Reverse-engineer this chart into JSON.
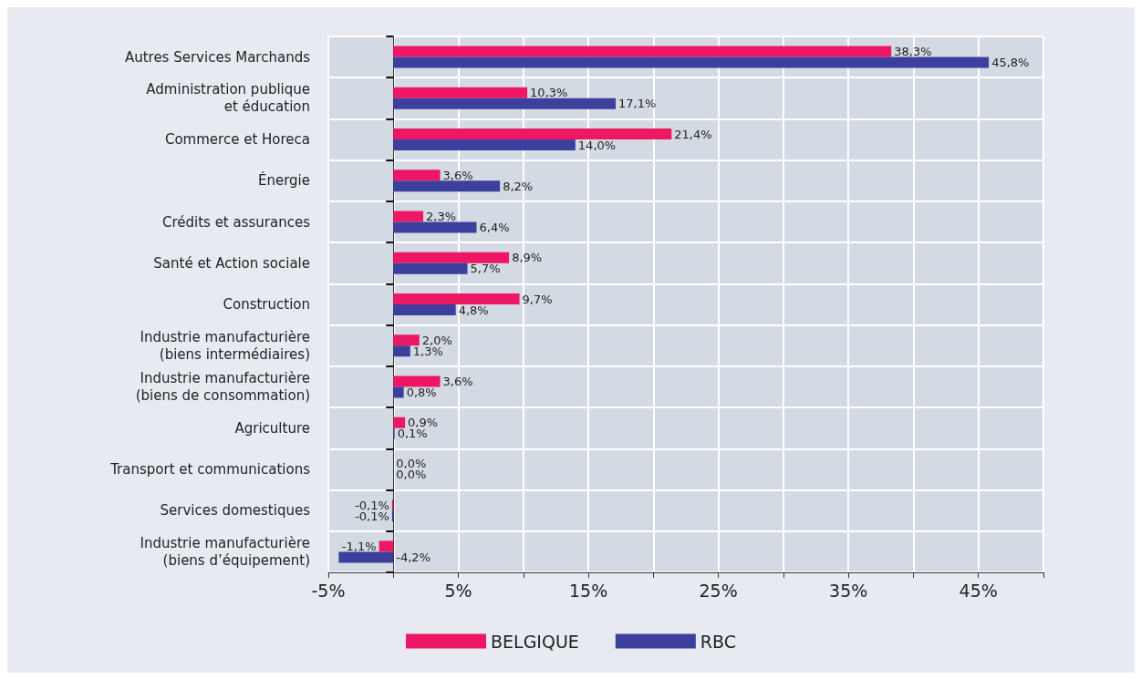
{
  "chart_data": {
    "type": "bar",
    "orientation": "horizontal",
    "categories": [
      "Autres Services Marchands",
      "Administration publique\net éducation",
      "Commerce et Horeca",
      "Énergie",
      "Crédits et assurances",
      "Santé et Action sociale",
      "Construction",
      "Industrie manufacturière\n(biens intermédiaires)",
      "Industrie manufacturière\n(biens de consommation)",
      "Agriculture",
      "Transport et communications",
      "Services domestiques",
      "Industrie manufacturière\n(biens d’équipement)"
    ],
    "series": [
      {
        "name": "BELGIQUE",
        "color": "#ee1763",
        "values": [
          38.3,
          10.3,
          21.4,
          3.6,
          2.3,
          8.9,
          9.7,
          2.0,
          3.6,
          0.9,
          0.0,
          -0.1,
          -1.1
        ],
        "value_labels": [
          "38,3%",
          "10,3%",
          "21,4%",
          "3,6%",
          "2,3%",
          "8,9%",
          "9,7%",
          "2,0%",
          "3,6%",
          "0,9%",
          "0,0%",
          "-0,1%",
          "-1,1%"
        ]
      },
      {
        "name": "RBC",
        "color": "#3c3f9c",
        "values": [
          45.8,
          17.1,
          14.0,
          8.2,
          6.4,
          5.7,
          4.8,
          1.3,
          0.8,
          0.1,
          0.0,
          -0.1,
          -4.2
        ],
        "value_labels": [
          "45,8%",
          "17,1%",
          "14,0%",
          "8,2%",
          "6,4%",
          "5,7%",
          "4,8%",
          "1,3%",
          "0,8%",
          "0,1%",
          "0,0%",
          "-0,1%",
          "-4,2%"
        ]
      }
    ],
    "xlim": [
      -5,
      50
    ],
    "xticks": [
      {
        "value": -5,
        "label": "-5%"
      },
      {
        "value": 0,
        "label": null
      },
      {
        "value": 5,
        "label": "5%"
      },
      {
        "value": 10,
        "label": null
      },
      {
        "value": 15,
        "label": "15%"
      },
      {
        "value": 20,
        "label": null
      },
      {
        "value": 25,
        "label": "25%"
      },
      {
        "value": 30,
        "label": null
      },
      {
        "value": 35,
        "label": "35%"
      },
      {
        "value": 40,
        "label": null
      },
      {
        "value": 45,
        "label": "45%"
      },
      {
        "value": 50,
        "label": null
      }
    ],
    "grid": true,
    "legend": "bottom"
  }
}
